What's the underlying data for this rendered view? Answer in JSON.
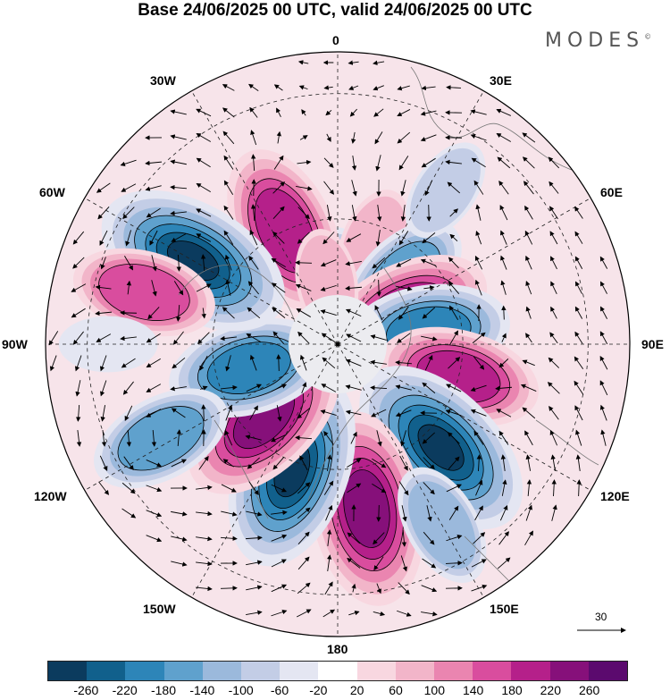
{
  "title": "Base 24/06/2025 00 UTC, valid 24/06/2025 00 UTC",
  "brand": "MODES",
  "brand_mark": "©",
  "longitude_labels": {
    "top": "0",
    "top_right": "30E",
    "right_upper": "60E",
    "right": "90E",
    "right_lower": "120E",
    "bottom_right": "150E",
    "bottom": "180",
    "bottom_left": "150W",
    "left_lower": "120W",
    "left": "90W",
    "left_upper": "60W",
    "top_left": "30W"
  },
  "vector_scale": "30",
  "colorbar": {
    "colors": [
      "#0b3b5e",
      "#11608c",
      "#2d85b8",
      "#5fa1cd",
      "#9bb9dc",
      "#c3cde6",
      "#e4e6f2",
      "#ffffff",
      "#f8d7e0",
      "#f2b5c9",
      "#ea85b0",
      "#d94d9e",
      "#b5208a",
      "#86107a",
      "#5b0a6e"
    ],
    "ticks": [
      "-260",
      "-220",
      "-180",
      "-140",
      "-100",
      "-60",
      "-20",
      "20",
      "60",
      "100",
      "140",
      "180",
      "220",
      "260"
    ]
  },
  "map_field": {
    "anomalies": [
      {
        "lon": 0,
        "lat": 75,
        "value": -60
      },
      {
        "lon": -25,
        "lat": 60,
        "value": 200
      },
      {
        "lon": 20,
        "lat": 65,
        "value": 80
      },
      {
        "lon": 45,
        "lat": 68,
        "value": -140
      },
      {
        "lon": 65,
        "lat": 72,
        "value": 200
      },
      {
        "lon": 82,
        "lat": 68,
        "value": -180
      },
      {
        "lon": 105,
        "lat": 60,
        "value": 180
      },
      {
        "lon": 135,
        "lat": 55,
        "value": -260
      },
      {
        "lon": 170,
        "lat": 50,
        "value": 250
      },
      {
        "lon": -160,
        "lat": 58,
        "value": -260
      },
      {
        "lon": -135,
        "lat": 65,
        "value": 230
      },
      {
        "lon": -105,
        "lat": 68,
        "value": -180
      },
      {
        "lon": -60,
        "lat": 50,
        "value": -260
      },
      {
        "lon": -75,
        "lat": 42,
        "value": 140
      },
      {
        "lon": -118,
        "lat": 42,
        "value": -140
      },
      {
        "lon": -90,
        "lat": 35,
        "value": -40
      },
      {
        "lon": 35,
        "lat": 45,
        "value": -60
      },
      {
        "lon": -10,
        "lat": 75,
        "value": 60
      },
      {
        "lon": 150,
        "lat": 40,
        "value": -100
      }
    ]
  }
}
